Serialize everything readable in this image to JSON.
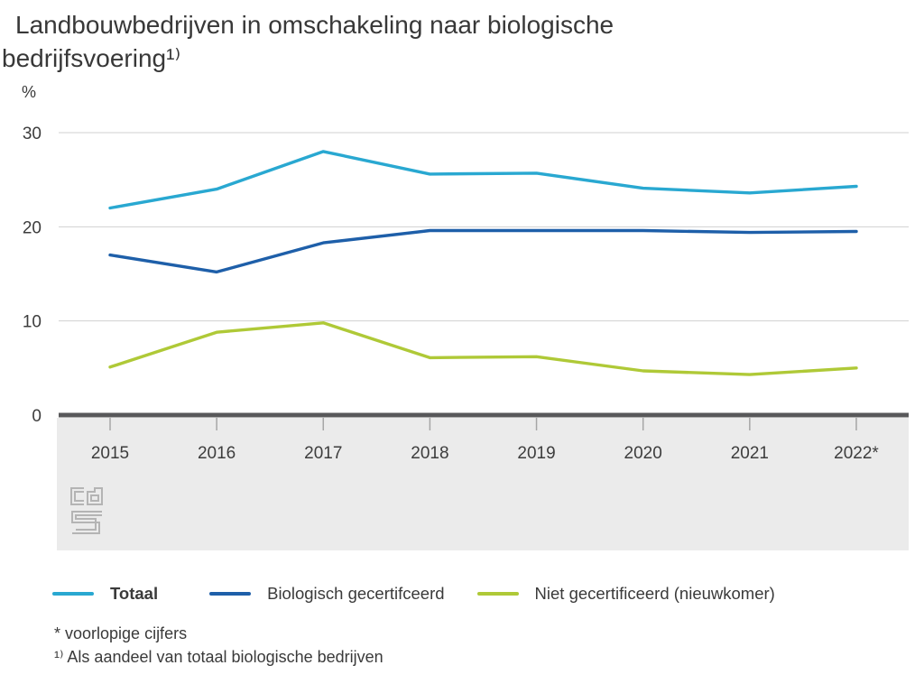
{
  "title": "Landbouwbedrijven in omschakeling naar biologische bedrijfsvoering¹⁾",
  "unit_label": "%",
  "icons": {
    "brand_logo": "cbs-logo"
  },
  "chart_data": {
    "type": "line",
    "categories": [
      "2015",
      "2016",
      "2017",
      "2018",
      "2019",
      "2020",
      "2021",
      "2022*"
    ],
    "series": [
      {
        "name": "Totaal",
        "color": "#29a8d1",
        "values": [
          22.0,
          24.0,
          28.0,
          25.6,
          25.7,
          24.1,
          23.6,
          24.3
        ]
      },
      {
        "name": "Biologisch gecertifceerd",
        "color": "#1e5fa9",
        "values": [
          17.0,
          15.2,
          18.3,
          19.6,
          19.6,
          19.6,
          19.4,
          19.5
        ]
      },
      {
        "name": "Niet gecertificeerd (nieuwkomer)",
        "color": "#afc937",
        "values": [
          5.1,
          8.8,
          9.8,
          6.1,
          6.2,
          4.7,
          4.3,
          5.0
        ]
      }
    ],
    "title": "Landbouwbedrijven in omschakeling naar biologische bedrijfsvoering",
    "xlabel": "",
    "ylabel": "%",
    "ylim": [
      0,
      30
    ],
    "yticks": [
      0,
      10,
      20,
      30
    ],
    "grid": true,
    "legend_position": "bottom",
    "axis_band_color": "#ebebeb",
    "baseline_color": "#58585a",
    "gridline_color": "#d0d0d0"
  },
  "footnotes": [
    "* voorlopige cijfers",
    "¹⁾ Als aandeel van totaal biologische bedrijven"
  ]
}
